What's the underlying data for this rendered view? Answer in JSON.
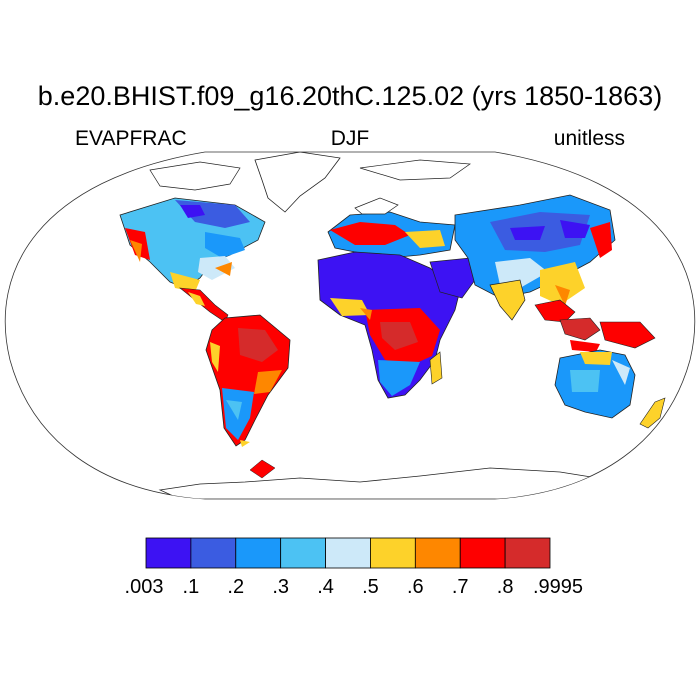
{
  "title": "b.e20.BHIST.f09_g16.20thC.125.02 (yrs 1850-1863)",
  "variable": "EVAPFRAC",
  "season": "DJF",
  "units": "unitless",
  "colorbar": {
    "colors": [
      "#3d12f3",
      "#3b5ce1",
      "#1a98fa",
      "#4cc2f3",
      "#cde9f9",
      "#fdd22a",
      "#fe8700",
      "#fe0000",
      "#d52b2b"
    ],
    "tick_labels": [
      ".003",
      ".1",
      ".2",
      ".3",
      ".4",
      ".5",
      ".6",
      ".7",
      ".8",
      ".9995"
    ]
  }
}
